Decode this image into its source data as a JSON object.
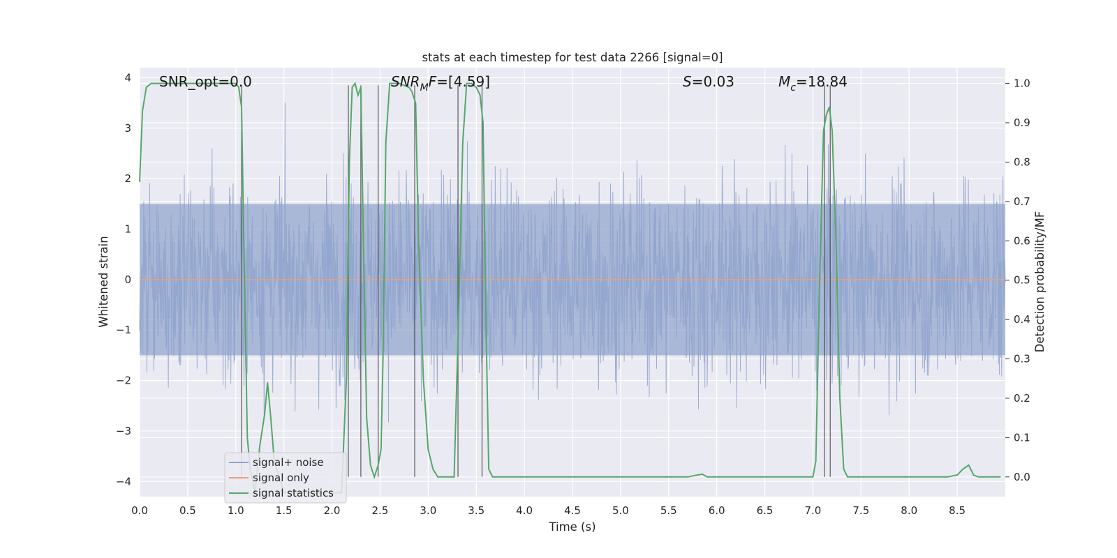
{
  "chart_data": {
    "type": "line",
    "title": "stats at each timestep for test data 2266 [signal=0]",
    "xlabel": "Time (s)",
    "ylabel": "Whitened strain",
    "ylabel_right": "Detection probability/MF",
    "xlim": [
      0,
      9.0
    ],
    "ylim": [
      -4.3,
      4.2
    ],
    "ylim_right": [
      -0.05,
      1.04
    ],
    "xticks": [
      "0.0",
      "0.5",
      "1.0",
      "1.5",
      "2.0",
      "2.5",
      "3.0",
      "3.5",
      "4.0",
      "4.5",
      "5.0",
      "5.5",
      "6.0",
      "6.5",
      "7.0",
      "7.5",
      "8.0",
      "8.5"
    ],
    "yticks": [
      "4",
      "3",
      "2",
      "1",
      "0",
      "−1",
      "−2",
      "−3",
      "−4"
    ],
    "yticks_right": [
      "1.0",
      "0.9",
      "0.8",
      "0.7",
      "0.6",
      "0.5",
      "0.4",
      "0.3",
      "0.2",
      "0.1",
      "0.0"
    ],
    "grid": true,
    "legend_position": "lower-left",
    "annotations": {
      "snr_opt": "SNR_opt=0.0",
      "snr_mf_main": "SNR",
      "snr_mf_sub": "M",
      "snr_mf_rest": "F=[4.59]",
      "s_var": "S",
      "s_rest": "=0.03",
      "mc_var": "M",
      "mc_sub": "c",
      "mc_rest": "=18.84"
    },
    "series": [
      {
        "name": "signal+ noise",
        "color": "#8fa3cc",
        "description_type": "noise",
        "amplitude_bulk": 1.5,
        "amplitude_peak_range": [
          -3.9,
          3.6
        ]
      },
      {
        "name": "signal only",
        "color": "#e8a07d",
        "values_constant": 0.0
      },
      {
        "name": "signal statistics",
        "color": "#55a868",
        "axis": "right",
        "x": [
          0.0,
          0.03,
          0.07,
          0.12,
          0.2,
          0.4,
          0.6,
          0.8,
          1.0,
          1.03,
          1.06,
          1.09,
          1.12,
          1.15,
          1.2,
          1.25,
          1.3,
          1.33,
          1.36,
          1.4,
          1.5,
          1.7,
          1.9,
          2.1,
          2.15,
          2.18,
          2.21,
          2.24,
          2.27,
          2.3,
          2.33,
          2.36,
          2.4,
          2.44,
          2.48,
          2.51,
          2.53,
          2.56,
          2.6,
          2.7,
          2.8,
          2.83,
          2.87,
          2.9,
          2.95,
          3.0,
          3.05,
          3.1,
          3.2,
          3.27,
          3.31,
          3.36,
          3.4,
          3.45,
          3.5,
          3.54,
          3.57,
          3.6,
          3.63,
          3.67,
          3.8,
          4.0,
          4.5,
          5.0,
          5.5,
          5.7,
          5.8,
          5.85,
          5.9,
          6.0,
          6.5,
          7.0,
          7.03,
          7.07,
          7.11,
          7.14,
          7.17,
          7.2,
          7.24,
          7.28,
          7.32,
          7.36,
          7.4,
          7.6,
          8.0,
          8.4,
          8.5,
          8.56,
          8.62,
          8.67,
          8.72,
          8.8,
          8.95
        ],
        "values": [
          0.75,
          0.93,
          0.99,
          1.0,
          1.0,
          1.0,
          1.0,
          1.0,
          1.0,
          0.99,
          0.94,
          0.5,
          0.1,
          0.02,
          -0.04,
          0.08,
          0.16,
          0.24,
          0.16,
          0.04,
          -0.04,
          -0.04,
          -0.04,
          -0.04,
          0.25,
          0.8,
          0.99,
          1.0,
          0.97,
          0.99,
          0.55,
          0.15,
          0.03,
          0.0,
          0.03,
          0.07,
          0.3,
          0.85,
          1.0,
          1.0,
          0.99,
          0.98,
          0.95,
          0.6,
          0.25,
          0.07,
          0.02,
          0.0,
          0.0,
          0.0,
          0.35,
          0.85,
          1.0,
          1.0,
          0.99,
          0.97,
          0.9,
          0.4,
          0.02,
          0.0,
          0.0,
          0.0,
          0.0,
          0.0,
          0.0,
          0.0,
          0.005,
          0.007,
          0.0,
          0.0,
          0.0,
          0.0,
          0.04,
          0.5,
          0.88,
          0.92,
          0.94,
          0.88,
          0.6,
          0.2,
          0.02,
          0.0,
          0.0,
          0.0,
          0.0,
          0.0,
          0.005,
          0.02,
          0.03,
          0.005,
          0.0,
          0.0,
          0.0
        ]
      }
    ],
    "vlines": [
      1.06,
      2.17,
      2.3,
      2.48,
      2.86,
      3.31,
      3.56,
      7.12,
      7.18
    ],
    "legend": [
      "signal+ noise",
      "signal only",
      "signal statistics"
    ]
  }
}
